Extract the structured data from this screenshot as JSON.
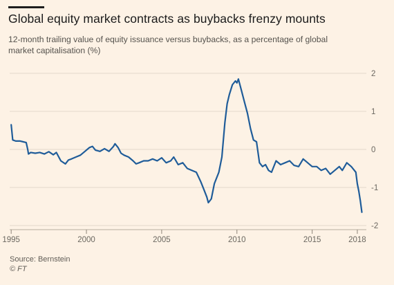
{
  "header": {
    "title": "Global equity market contracts as buybacks frenzy mounts",
    "subtitle": "12-month trailing value of equity issuance versus buybacks, as a percentage of global market capitalisation (%)"
  },
  "footer": {
    "source": "Source: Bernstein",
    "credit": "© FT"
  },
  "colors": {
    "background": "#fdf2e5",
    "line": "#1f5c99",
    "grid": "#e3d8cb",
    "text": "#6b6760"
  },
  "chart_data": {
    "type": "line",
    "title": "Global equity market contracts as buybacks frenzy mounts",
    "subtitle": "12-month trailing value of equity issuance versus buybacks, as a percentage of global market capitalisation (%)",
    "xlabel": "",
    "ylabel": "",
    "xlim": [
      1994.9,
      2018.6
    ],
    "ylim": [
      -2,
      2
    ],
    "y_ticks": [
      2,
      1,
      0,
      -1,
      -2
    ],
    "y_tick_labels": [
      "2",
      "1",
      "0",
      "-1",
      "-2"
    ],
    "x_ticks": [
      1995,
      2000,
      2005,
      2010,
      2015,
      2018
    ],
    "x_tick_labels": [
      "1995",
      "2000",
      "2005",
      "2010",
      "2015",
      "2018"
    ],
    "y_axis_side": "right",
    "grid": true,
    "series": [
      {
        "x": [
          1995.0,
          1995.05,
          1995.1,
          1995.3,
          1995.6,
          1995.8,
          1996.0,
          1996.1,
          1996.15,
          1996.3,
          1996.6,
          1996.9,
          1997.2,
          1997.5,
          1997.8,
          1998.0,
          1998.3,
          1998.6,
          1998.8,
          1999.0,
          1999.3,
          1999.6,
          1999.9,
          2000.2,
          2000.4,
          2000.6,
          2000.9,
          2001.2,
          2001.5,
          2001.8,
          2001.9,
          2002.1,
          2002.3,
          2002.5,
          2002.8,
          2003.1,
          2003.3,
          2003.5,
          2003.8,
          2004.1,
          2004.4,
          2004.7,
          2005.0,
          2005.3,
          2005.6,
          2005.8,
          2006.1,
          2006.4,
          2006.7,
          2007.0,
          2007.3,
          2007.6,
          2007.8,
          2008.0,
          2008.1,
          2008.3,
          2008.5,
          2008.8,
          2009.0,
          2009.2,
          2009.35,
          2009.5,
          2009.7,
          2009.9,
          2010.0,
          2010.1,
          2010.3,
          2010.5,
          2010.7,
          2010.9,
          2011.1,
          2011.3,
          2011.5,
          2011.7,
          2011.9,
          2012.1,
          2012.3,
          2012.6,
          2012.9,
          2013.2,
          2013.5,
          2013.8,
          2014.1,
          2014.4,
          2014.7,
          2015.0,
          2015.3,
          2015.6,
          2015.9,
          2016.2,
          2016.5,
          2016.8,
          2017.0,
          2017.3,
          2017.6,
          2017.9,
          2018.0,
          2018.1,
          2018.2,
          2018.3
        ],
        "y": [
          0.65,
          0.45,
          0.25,
          0.22,
          0.22,
          0.2,
          0.18,
          0.0,
          -0.12,
          -0.08,
          -0.1,
          -0.08,
          -0.12,
          -0.06,
          -0.14,
          -0.08,
          -0.3,
          -0.38,
          -0.28,
          -0.25,
          -0.2,
          -0.15,
          -0.05,
          0.05,
          0.08,
          -0.02,
          -0.05,
          0.02,
          -0.05,
          0.08,
          0.15,
          0.05,
          -0.1,
          -0.15,
          -0.2,
          -0.3,
          -0.38,
          -0.35,
          -0.3,
          -0.3,
          -0.25,
          -0.3,
          -0.22,
          -0.35,
          -0.3,
          -0.2,
          -0.4,
          -0.35,
          -0.5,
          -0.55,
          -0.6,
          -0.85,
          -1.05,
          -1.25,
          -1.4,
          -1.3,
          -0.9,
          -0.6,
          -0.2,
          0.7,
          1.2,
          1.45,
          1.7,
          1.8,
          1.75,
          1.85,
          1.55,
          1.25,
          0.95,
          0.55,
          0.25,
          0.2,
          -0.35,
          -0.45,
          -0.4,
          -0.55,
          -0.6,
          -0.3,
          -0.4,
          -0.35,
          -0.3,
          -0.42,
          -0.45,
          -0.25,
          -0.35,
          -0.45,
          -0.45,
          -0.55,
          -0.5,
          -0.65,
          -0.55,
          -0.45,
          -0.55,
          -0.35,
          -0.45,
          -0.6,
          -0.9,
          -1.1,
          -1.35,
          -1.65
        ]
      }
    ]
  }
}
